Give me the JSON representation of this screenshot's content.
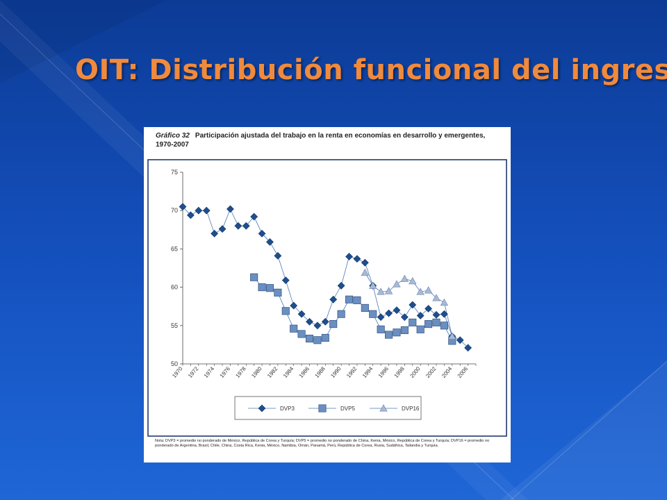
{
  "slide": {
    "title": "OIT: Distribución funcional del ingreso",
    "colors": {
      "background": "#1552c0",
      "title": "#f08a3c",
      "frame": "#1f3a6b"
    }
  },
  "figure": {
    "caption_number": "Gráfico 32",
    "caption_text": "Participación ajustada del trabajo en la renta en economías en desarrollo y emergentes, 1970-2007",
    "note": "Nota: DVP3 = promedio no ponderado de México, República de Corea y Turquía; DVP5 = promedio no ponderado de China, Kenia, México, República de Corea y Turquía; DVP16 = promedio no ponderado de Argentina, Brasil, Chile, China, Costa Rica, Kenia, México, Namibia, Omán, Panamá, Perú, República de Corea, Rusia, Sudáfrica, Tailandia y Turquía."
  },
  "chart_data": {
    "type": "line",
    "title": "",
    "xlabel": "",
    "ylabel": "",
    "xlim": [
      1970,
      2007
    ],
    "ylim": [
      50,
      75
    ],
    "yticks": [
      50,
      55,
      60,
      65,
      70,
      75
    ],
    "xticks": [
      "1970",
      "1972",
      "1974",
      "1976",
      "1978",
      "1980",
      "1982",
      "1984",
      "1986",
      "1988",
      "1990",
      "1992",
      "1994",
      "1996",
      "1998",
      "2000",
      "2002",
      "2004",
      "2006"
    ],
    "grid": false,
    "legend_position": "bottom",
    "series": [
      {
        "name": "DVP3",
        "marker": "diamond",
        "color": "#1f4e8c",
        "x": [
          1970,
          1971,
          1972,
          1973,
          1974,
          1975,
          1976,
          1977,
          1978,
          1979,
          1980,
          1981,
          1982,
          1983,
          1984,
          1985,
          1986,
          1987,
          1988,
          1989,
          1990,
          1991,
          1992,
          1993,
          1994,
          1995,
          1996,
          1997,
          1998,
          1999,
          2000,
          2001,
          2002,
          2003,
          2004,
          2005,
          2006
        ],
        "values": [
          70.5,
          69.4,
          70.0,
          70.0,
          67.0,
          67.6,
          70.2,
          68.0,
          68.0,
          69.2,
          67.0,
          65.9,
          64.1,
          60.9,
          57.6,
          56.5,
          55.5,
          55.0,
          55.5,
          58.4,
          60.2,
          64.0,
          63.7,
          63.2,
          60.2,
          56.1,
          56.6,
          57.0,
          56.1,
          57.7,
          56.3,
          57.2,
          56.4,
          56.5,
          53.6,
          53.1,
          52.1
        ]
      },
      {
        "name": "DVP5",
        "marker": "square",
        "color": "#6a8fc2",
        "x": [
          1979,
          1980,
          1981,
          1982,
          1983,
          1984,
          1985,
          1986,
          1987,
          1988,
          1989,
          1990,
          1991,
          1992,
          1993,
          1994,
          1995,
          1996,
          1997,
          1998,
          1999,
          2000,
          2001,
          2002,
          2003,
          2004
        ],
        "values": [
          61.3,
          60.0,
          59.9,
          59.3,
          56.9,
          54.6,
          53.9,
          53.3,
          53.1,
          53.4,
          55.2,
          56.5,
          58.4,
          58.3,
          57.3,
          56.5,
          54.5,
          53.8,
          54.1,
          54.4,
          55.4,
          54.5,
          55.2,
          55.4,
          55.0,
          53.0
        ]
      },
      {
        "name": "DVP16",
        "marker": "triangle",
        "color": "#a7b9d6",
        "x": [
          1993,
          1994,
          1995,
          1996,
          1997,
          1998,
          1999,
          2000,
          2001,
          2002,
          2003,
          2004
        ],
        "values": [
          61.9,
          60.2,
          59.4,
          59.5,
          60.4,
          61.1,
          60.8,
          59.4,
          59.6,
          58.6,
          58.0,
          53.6
        ]
      }
    ]
  }
}
